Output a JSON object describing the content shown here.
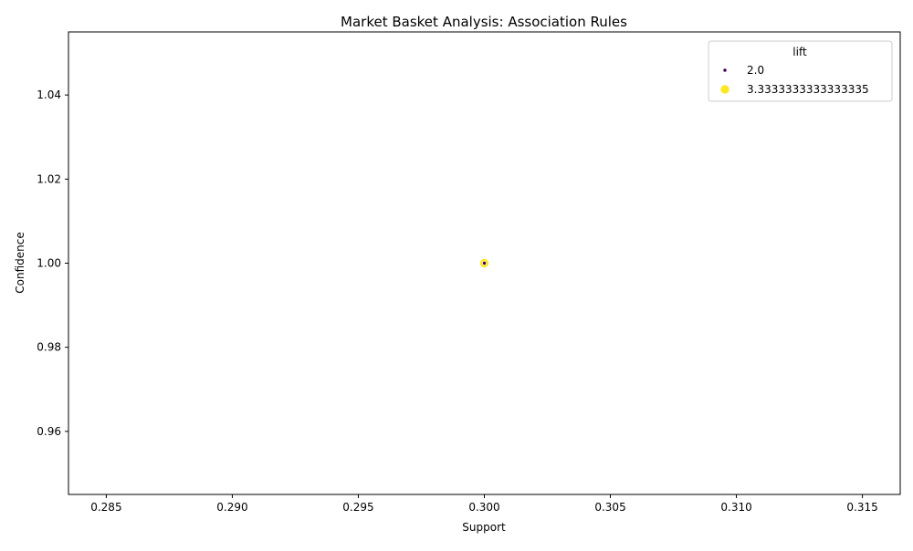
{
  "chart_data": {
    "type": "scatter",
    "title": "Market Basket Analysis: Association Rules",
    "xlabel": "Support",
    "ylabel": "Confidence",
    "xlim": [
      0.2835,
      0.3165
    ],
    "ylim": [
      0.945,
      1.055
    ],
    "xticks": [
      "0.285",
      "0.290",
      "0.295",
      "0.300",
      "0.305",
      "0.310",
      "0.315"
    ],
    "yticks": [
      "0.96",
      "0.98",
      "1.00",
      "1.02",
      "1.04"
    ],
    "grid": false,
    "legend": {
      "title": "lift",
      "position": "top-right",
      "entries": [
        {
          "label": "2.0",
          "color": "#440154"
        },
        {
          "label": "3.3333333333333335",
          "color": "#fde725"
        }
      ]
    },
    "points": [
      {
        "x": 0.3,
        "y": 1.0,
        "lift": 3.3333333333333335,
        "color": "#fde725"
      },
      {
        "x": 0.3,
        "y": 1.0,
        "lift": 2.0,
        "color": "#440154"
      }
    ]
  }
}
